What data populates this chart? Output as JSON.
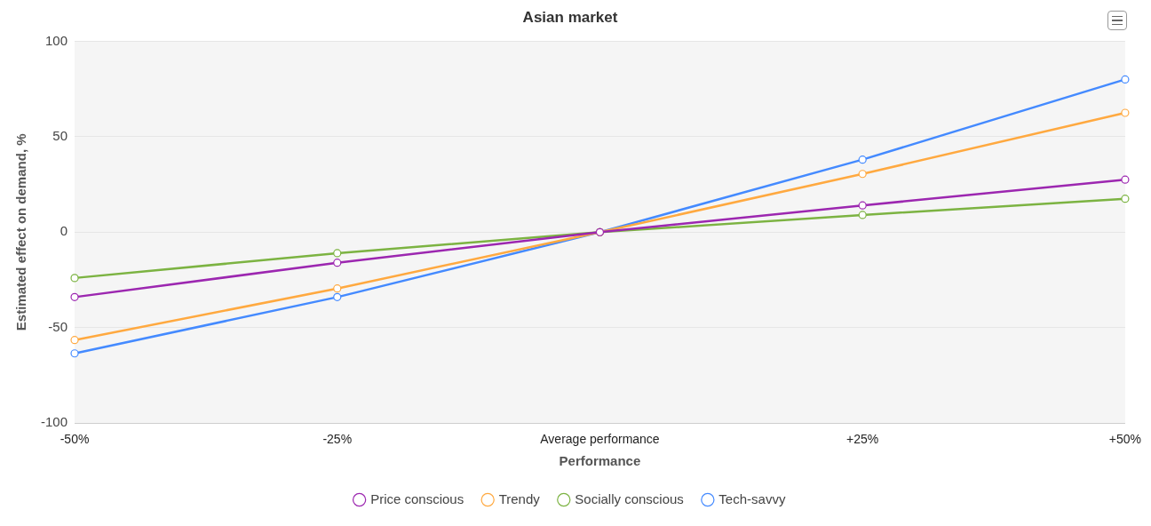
{
  "chart_data": {
    "type": "line",
    "title": "Asian market",
    "xlabel": "Performance",
    "ylabel": "Estimated effect on demand, %",
    "categories": [
      "-50%",
      "-25%",
      "Average performance",
      "+25%",
      "+50%"
    ],
    "series": [
      {
        "name": "Price conscious",
        "color": "#9c27b0",
        "values": [
          -34,
          -16,
          0,
          14,
          27.5
        ]
      },
      {
        "name": "Trendy",
        "color": "#ffa940",
        "values": [
          -56.5,
          -29.5,
          0,
          30.5,
          62.5
        ]
      },
      {
        "name": "Socially conscious",
        "color": "#7cb342",
        "values": [
          -24,
          -11,
          0,
          9,
          17.5
        ]
      },
      {
        "name": "Tech-savvy",
        "color": "#448aff",
        "values": [
          -63.5,
          -34,
          0,
          38,
          80
        ]
      }
    ],
    "ylim": [
      -100,
      100
    ],
    "yticks": [
      -100,
      -50,
      0,
      50,
      100
    ],
    "grid": "y",
    "legend": "bottom",
    "marker": "circle",
    "line_style": "solid"
  }
}
